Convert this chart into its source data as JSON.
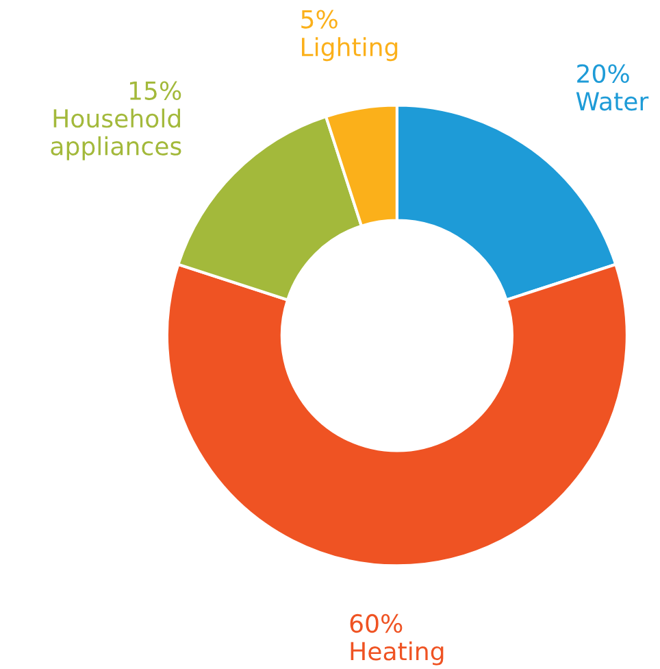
{
  "chart_data": {
    "type": "donut",
    "categories": [
      "Water",
      "Heating",
      "Household appliances",
      "Lighting"
    ],
    "values": [
      20,
      60,
      15,
      5
    ],
    "colors": [
      "#1e9bd7",
      "#ef5323",
      "#a3b93b",
      "#fbb01a"
    ],
    "value_labels": [
      "20%",
      "60%",
      "15%",
      "5%"
    ],
    "legend": false
  }
}
